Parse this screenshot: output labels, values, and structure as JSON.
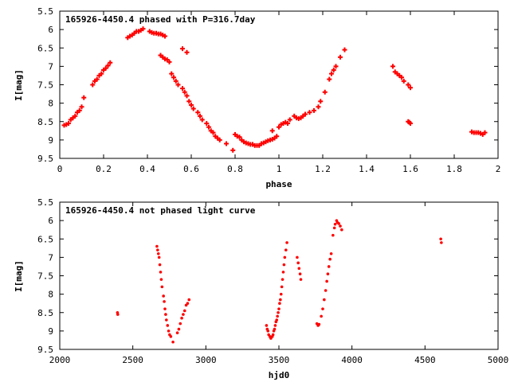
{
  "colors": {
    "points": "#ff0000",
    "axes": "#000000",
    "background": "#ffffff"
  },
  "chart_data": [
    {
      "type": "scatter",
      "title": "165926-4450.4 phased with P=316.7day",
      "xlabel": "phase",
      "ylabel": "I[mag]",
      "xlim": [
        0,
        2
      ],
      "ylim": [
        9.5,
        5.5
      ],
      "y_inverted": true,
      "grid": false,
      "xticks": [
        "0",
        "0.2",
        "0.4",
        "0.6",
        "0.8",
        "1",
        "1.2",
        "1.4",
        "1.6",
        "1.8",
        "2"
      ],
      "yticks": [
        "5.5",
        "6",
        "6.5",
        "7",
        "7.5",
        "8",
        "8.5",
        "9",
        "9.5"
      ],
      "series": [
        {
          "marker": "plus",
          "points": [
            [
              0.02,
              8.6
            ],
            [
              0.03,
              8.58
            ],
            [
              0.04,
              8.55
            ],
            [
              0.05,
              8.45
            ],
            [
              0.06,
              8.4
            ],
            [
              0.07,
              8.35
            ],
            [
              0.08,
              8.25
            ],
            [
              0.09,
              8.2
            ],
            [
              0.1,
              8.1
            ],
            [
              0.11,
              7.85
            ],
            [
              0.15,
              7.5
            ],
            [
              0.16,
              7.4
            ],
            [
              0.17,
              7.35
            ],
            [
              0.18,
              7.25
            ],
            [
              0.19,
              7.2
            ],
            [
              0.2,
              7.1
            ],
            [
              0.21,
              7.05
            ],
            [
              0.22,
              6.98
            ],
            [
              0.23,
              6.9
            ],
            [
              0.31,
              6.22
            ],
            [
              0.32,
              6.18
            ],
            [
              0.33,
              6.15
            ],
            [
              0.34,
              6.1
            ],
            [
              0.35,
              6.05
            ],
            [
              0.36,
              6.05
            ],
            [
              0.37,
              6.02
            ],
            [
              0.38,
              5.98
            ],
            [
              0.41,
              6.05
            ],
            [
              0.42,
              6.08
            ],
            [
              0.43,
              6.1
            ],
            [
              0.44,
              6.1
            ],
            [
              0.45,
              6.12
            ],
            [
              0.46,
              6.12
            ],
            [
              0.47,
              6.15
            ],
            [
              0.48,
              6.18
            ],
            [
              0.46,
              6.7
            ],
            [
              0.47,
              6.75
            ],
            [
              0.48,
              6.8
            ],
            [
              0.49,
              6.82
            ],
            [
              0.5,
              6.88
            ],
            [
              0.51,
              7.2
            ],
            [
              0.52,
              7.3
            ],
            [
              0.53,
              7.4
            ],
            [
              0.54,
              7.5
            ],
            [
              0.56,
              6.52
            ],
            [
              0.58,
              6.62
            ],
            [
              0.56,
              7.6
            ],
            [
              0.57,
              7.7
            ],
            [
              0.58,
              7.8
            ],
            [
              0.59,
              7.95
            ],
            [
              0.6,
              8.05
            ],
            [
              0.61,
              8.15
            ],
            [
              0.63,
              8.25
            ],
            [
              0.64,
              8.35
            ],
            [
              0.65,
              8.45
            ],
            [
              0.67,
              8.55
            ],
            [
              0.68,
              8.65
            ],
            [
              0.69,
              8.75
            ],
            [
              0.7,
              8.8
            ],
            [
              0.71,
              8.9
            ],
            [
              0.72,
              8.95
            ],
            [
              0.73,
              9.0
            ],
            [
              0.76,
              9.1
            ],
            [
              0.79,
              9.28
            ],
            [
              0.8,
              8.85
            ],
            [
              0.81,
              8.9
            ],
            [
              0.82,
              8.92
            ],
            [
              0.83,
              9.0
            ],
            [
              0.84,
              9.05
            ],
            [
              0.85,
              9.08
            ],
            [
              0.86,
              9.1
            ],
            [
              0.87,
              9.12
            ],
            [
              0.88,
              9.12
            ],
            [
              0.89,
              9.15
            ],
            [
              0.9,
              9.15
            ],
            [
              0.91,
              9.15
            ],
            [
              0.92,
              9.1
            ],
            [
              0.93,
              9.08
            ],
            [
              0.94,
              9.05
            ],
            [
              0.95,
              9.02
            ],
            [
              0.96,
              9.0
            ],
            [
              0.97,
              8.98
            ],
            [
              0.98,
              8.95
            ],
            [
              0.99,
              8.9
            ],
            [
              0.97,
              8.75
            ],
            [
              1.0,
              8.65
            ],
            [
              1.01,
              8.58
            ],
            [
              1.02,
              8.55
            ],
            [
              1.03,
              8.52
            ],
            [
              1.04,
              8.55
            ],
            [
              1.05,
              8.45
            ],
            [
              1.07,
              8.35
            ],
            [
              1.08,
              8.4
            ],
            [
              1.09,
              8.42
            ],
            [
              1.1,
              8.4
            ],
            [
              1.11,
              8.35
            ],
            [
              1.12,
              8.3
            ],
            [
              1.14,
              8.25
            ],
            [
              1.16,
              8.2
            ],
            [
              1.18,
              8.1
            ],
            [
              1.19,
              7.95
            ],
            [
              1.21,
              7.7
            ],
            [
              1.23,
              7.35
            ],
            [
              1.24,
              7.2
            ],
            [
              1.25,
              7.1
            ],
            [
              1.26,
              7.0
            ],
            [
              1.28,
              6.75
            ],
            [
              1.3,
              6.55
            ],
            [
              1.52,
              7.0
            ],
            [
              1.53,
              7.15
            ],
            [
              1.54,
              7.2
            ],
            [
              1.55,
              7.25
            ],
            [
              1.56,
              7.3
            ],
            [
              1.57,
              7.4
            ],
            [
              1.59,
              7.5
            ],
            [
              1.6,
              7.58
            ],
            [
              1.59,
              8.5
            ],
            [
              1.595,
              8.52
            ],
            [
              1.6,
              8.55
            ],
            [
              1.88,
              8.78
            ],
            [
              1.89,
              8.8
            ],
            [
              1.9,
              8.8
            ],
            [
              1.91,
              8.8
            ],
            [
              1.92,
              8.82
            ],
            [
              1.93,
              8.85
            ],
            [
              1.94,
              8.8
            ]
          ]
        }
      ]
    },
    {
      "type": "scatter",
      "title": "165926-4450.4 not phased light curve",
      "xlabel": "hjd0",
      "ylabel": "I[mag]",
      "xlim": [
        2000,
        5000
      ],
      "ylim": [
        9.5,
        5.5
      ],
      "y_inverted": true,
      "grid": false,
      "xticks": [
        "2000",
        "2500",
        "3000",
        "3500",
        "4000",
        "4500",
        "5000"
      ],
      "yticks": [
        "5.5",
        "6",
        "6.5",
        "7",
        "7.5",
        "8",
        "8.5",
        "9",
        "9.5"
      ],
      "series": [
        {
          "marker": "dot",
          "points": [
            [
              2395,
              8.5
            ],
            [
              2397,
              8.55
            ],
            [
              2665,
              6.7
            ],
            [
              2670,
              6.8
            ],
            [
              2675,
              6.9
            ],
            [
              2680,
              7.0
            ],
            [
              2685,
              7.2
            ],
            [
              2690,
              7.4
            ],
            [
              2695,
              7.6
            ],
            [
              2700,
              7.8
            ],
            [
              2710,
              8.05
            ],
            [
              2715,
              8.2
            ],
            [
              2720,
              8.4
            ],
            [
              2725,
              8.55
            ],
            [
              2730,
              8.7
            ],
            [
              2738,
              8.85
            ],
            [
              2745,
              9.0
            ],
            [
              2752,
              9.1
            ],
            [
              2760,
              9.15
            ],
            [
              2775,
              9.3
            ],
            [
              2805,
              9.05
            ],
            [
              2815,
              8.95
            ],
            [
              2825,
              8.8
            ],
            [
              2835,
              8.65
            ],
            [
              2845,
              8.55
            ],
            [
              2855,
              8.45
            ],
            [
              2865,
              8.3
            ],
            [
              2875,
              8.25
            ],
            [
              2885,
              8.15
            ],
            [
              3415,
              8.85
            ],
            [
              3420,
              8.95
            ],
            [
              3425,
              9.0
            ],
            [
              3430,
              9.1
            ],
            [
              3438,
              9.15
            ],
            [
              3445,
              9.2
            ],
            [
              3455,
              9.15
            ],
            [
              3460,
              9.1
            ],
            [
              3465,
              9.0
            ],
            [
              3470,
              8.95
            ],
            [
              3475,
              8.85
            ],
            [
              3480,
              8.75
            ],
            [
              3485,
              8.7
            ],
            [
              3490,
              8.6
            ],
            [
              3495,
              8.5
            ],
            [
              3500,
              8.4
            ],
            [
              3505,
              8.25
            ],
            [
              3510,
              8.15
            ],
            [
              3515,
              8.0
            ],
            [
              3520,
              7.8
            ],
            [
              3525,
              7.6
            ],
            [
              3530,
              7.4
            ],
            [
              3535,
              7.2
            ],
            [
              3540,
              7.0
            ],
            [
              3548,
              6.8
            ],
            [
              3555,
              6.6
            ],
            [
              3625,
              7.0
            ],
            [
              3632,
              7.15
            ],
            [
              3638,
              7.3
            ],
            [
              3645,
              7.45
            ],
            [
              3650,
              7.6
            ],
            [
              3760,
              8.8
            ],
            [
              3768,
              8.85
            ],
            [
              3775,
              8.82
            ],
            [
              3790,
              8.6
            ],
            [
              3800,
              8.4
            ],
            [
              3810,
              8.15
            ],
            [
              3820,
              7.9
            ],
            [
              3828,
              7.65
            ],
            [
              3835,
              7.45
            ],
            [
              3842,
              7.25
            ],
            [
              3850,
              7.05
            ],
            [
              3858,
              6.9
            ],
            [
              3870,
              6.4
            ],
            [
              3880,
              6.2
            ],
            [
              3885,
              6.1
            ],
            [
              3895,
              6.0
            ],
            [
              3900,
              6.05
            ],
            [
              3910,
              6.08
            ],
            [
              3920,
              6.15
            ],
            [
              3930,
              6.25
            ],
            [
              4608,
              6.5
            ],
            [
              4612,
              6.6
            ]
          ]
        }
      ]
    }
  ]
}
